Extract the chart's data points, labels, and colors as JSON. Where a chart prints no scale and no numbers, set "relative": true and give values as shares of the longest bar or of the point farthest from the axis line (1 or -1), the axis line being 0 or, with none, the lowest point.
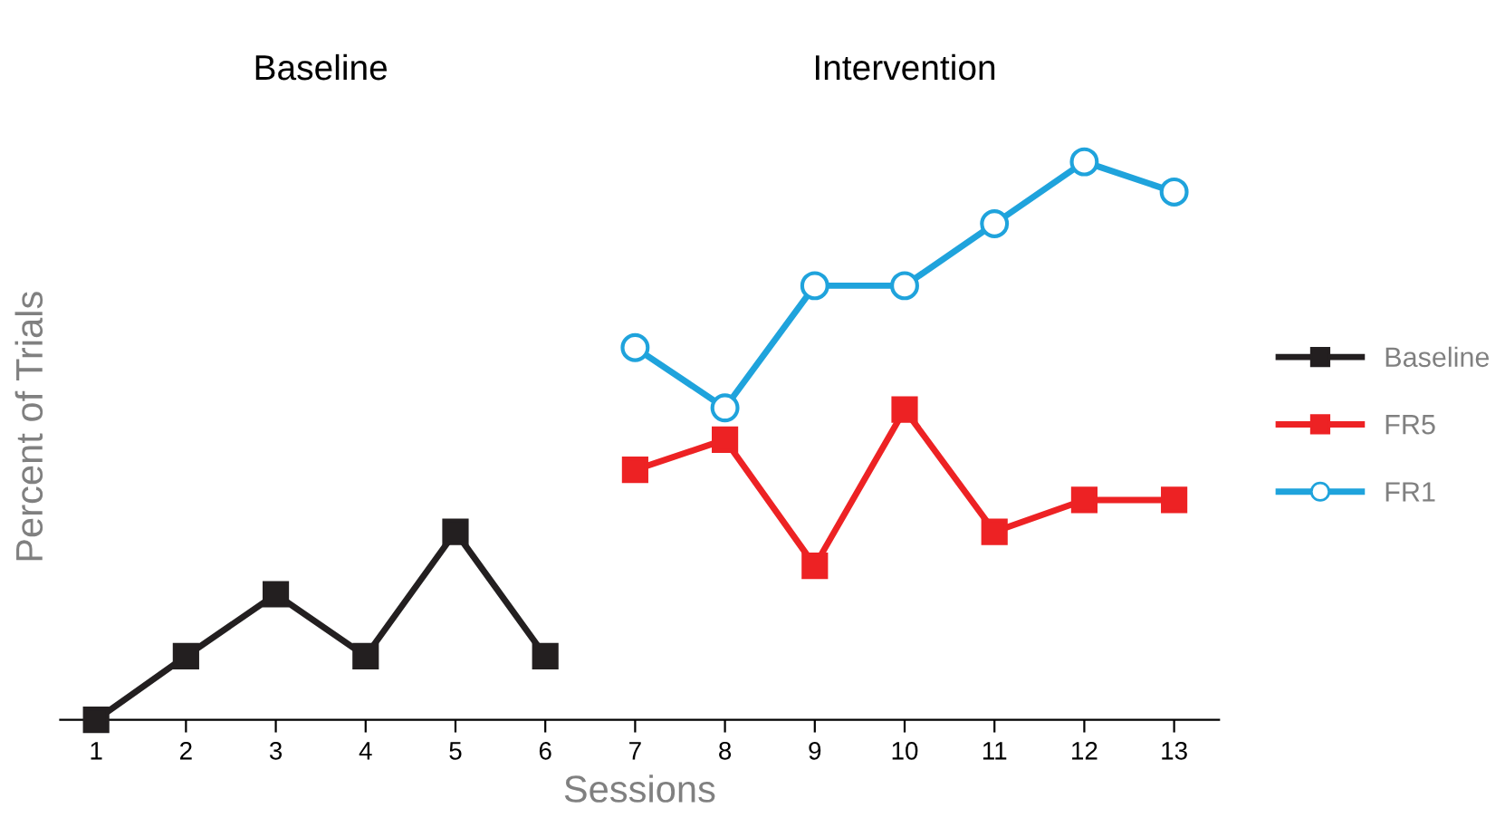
{
  "chart_data": {
    "type": "line",
    "relative": true,
    "xlabel": "Sessions",
    "ylabel": "Percent of Trials",
    "annotations": [
      "Baseline",
      "Intervention"
    ],
    "categories": [
      "1",
      "2",
      "3",
      "4",
      "5",
      "6",
      "7",
      "8",
      "9",
      "10",
      "11",
      "12",
      "13"
    ],
    "series": [
      {
        "name": "Baseline",
        "color": "#231f20",
        "marker": "square",
        "values": [
          0,
          0.114,
          0.225,
          0.114,
          0.337,
          0.114,
          null,
          null,
          null,
          null,
          null,
          null,
          null
        ]
      },
      {
        "name": "FR5",
        "color": "#ed2224",
        "marker": "square",
        "values": [
          null,
          null,
          null,
          null,
          null,
          null,
          0.448,
          0.502,
          0.276,
          0.556,
          0.337,
          0.394,
          0.394
        ]
      },
      {
        "name": "FR1",
        "color": "#1fa3dc",
        "marker": "circle",
        "values": [
          null,
          null,
          null,
          null,
          null,
          null,
          0.667,
          0.559,
          0.778,
          0.778,
          0.889,
          1,
          0.946
        ]
      }
    ],
    "legend": "right",
    "grid": false,
    "line_style": "solid"
  }
}
